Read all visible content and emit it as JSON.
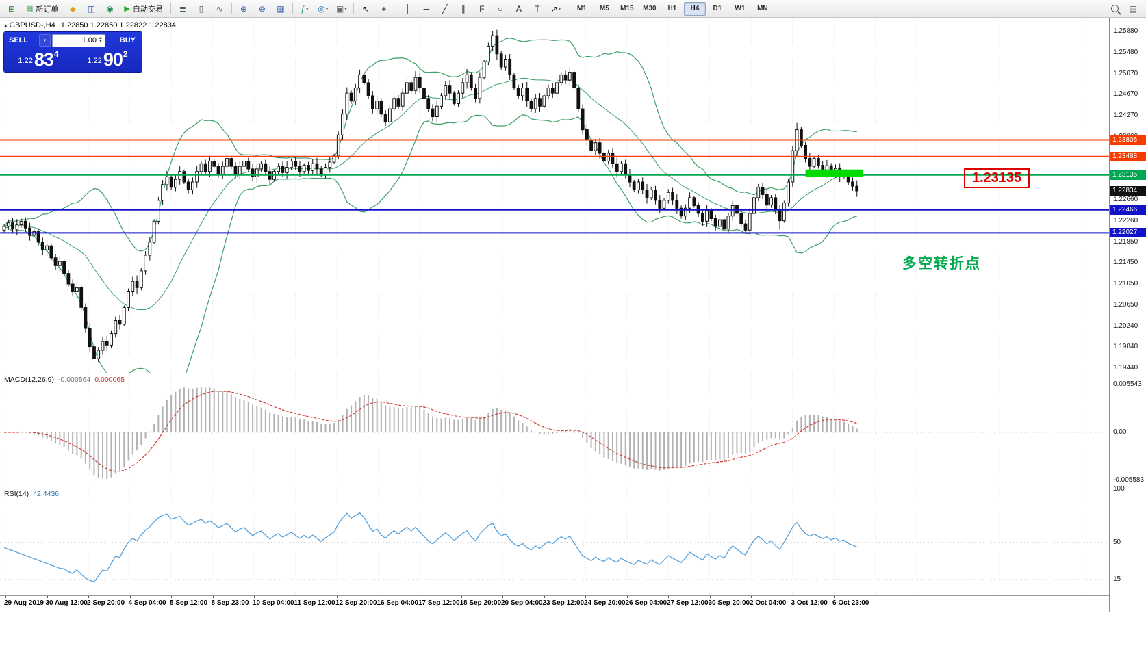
{
  "toolbar": {
    "items": [
      {
        "type": "icon",
        "name": "new-chart",
        "glyph": "⊞",
        "color": "#2f7d32"
      },
      {
        "type": "button",
        "name": "new-order",
        "label": "新订单",
        "icon": "▤",
        "icon_color": "#2f9e44"
      },
      {
        "type": "icon",
        "name": "favorites",
        "glyph": "◆",
        "color": "#dfa41c"
      },
      {
        "type": "icon",
        "name": "market-watch",
        "glyph": "◫",
        "color": "#2458b8"
      },
      {
        "type": "icon",
        "name": "strategy-tester",
        "glyph": "◉",
        "color": "#2a8f5a"
      },
      {
        "type": "button",
        "name": "autotrading",
        "label": "自动交易",
        "icon": "▶",
        "icon_color": "#24a62c"
      },
      {
        "type": "sep"
      },
      {
        "type": "icon",
        "name": "bar-chart-mode",
        "glyph": "≣",
        "color": "#3f5f3f"
      },
      {
        "type": "icon",
        "name": "candlestick-mode",
        "glyph": "▯",
        "color": "#3f5f3f"
      },
      {
        "type": "icon",
        "name": "line-chart-mode",
        "glyph": "∿",
        "color": "#3f5f3f"
      },
      {
        "type": "sep"
      },
      {
        "type": "icon",
        "name": "zoom-in",
        "glyph": "⊕",
        "color": "#3558a8"
      },
      {
        "type": "icon",
        "name": "zoom-out",
        "glyph": "⊖",
        "color": "#3558a8"
      },
      {
        "type": "icon",
        "name": "tile-windows",
        "glyph": "▦",
        "color": "#3558a8"
      },
      {
        "type": "sep"
      },
      {
        "type": "icon",
        "name": "indicators",
        "glyph": "ƒ",
        "color": "#1f8a4c",
        "dd": true
      },
      {
        "type": "icon",
        "name": "navigator",
        "glyph": "◎",
        "color": "#1f6ab0",
        "dd": true
      },
      {
        "type": "icon",
        "name": "templates",
        "glyph": "▣",
        "color": "#6b6b6b",
        "dd": true
      },
      {
        "type": "sep"
      },
      {
        "type": "icon",
        "name": "cursor",
        "glyph": "↖",
        "color": "#222222"
      },
      {
        "type": "icon",
        "name": "crosshair",
        "glyph": "+",
        "color": "#222222"
      },
      {
        "type": "sep"
      },
      {
        "type": "icon",
        "name": "vertical-line-tool",
        "glyph": "│",
        "color": "#222222"
      },
      {
        "type": "icon",
        "name": "horizontal-line-tool",
        "glyph": "─",
        "color": "#222222"
      },
      {
        "type": "icon",
        "name": "trendline-tool",
        "glyph": "╱",
        "color": "#222222"
      },
      {
        "type": "icon",
        "name": "channel-tool",
        "glyph": "∥",
        "color": "#222222"
      },
      {
        "type": "icon",
        "name": "fibonacci-tool",
        "glyph": "F",
        "color": "#222222"
      },
      {
        "type": "icon",
        "name": "shapes-tool",
        "glyph": "○",
        "color": "#222222"
      },
      {
        "type": "icon",
        "name": "text-tool",
        "glyph": "A",
        "color": "#222222"
      },
      {
        "type": "icon",
        "name": "label-tool",
        "glyph": "T",
        "color": "#222222"
      },
      {
        "type": "icon",
        "name": "arrows-tool",
        "glyph": "↗",
        "color": "#222222",
        "dd": true
      }
    ],
    "timeframes": [
      {
        "label": "M1"
      },
      {
        "label": "M5"
      },
      {
        "label": "M15"
      },
      {
        "label": "M30"
      },
      {
        "label": "H1"
      },
      {
        "label": "H4",
        "active": true
      },
      {
        "label": "D1"
      },
      {
        "label": "W1"
      },
      {
        "label": "MN"
      }
    ],
    "right_items": [
      {
        "type": "icon",
        "name": "search",
        "glyph": "MAG"
      },
      {
        "type": "icon",
        "name": "data-window",
        "glyph": "▤",
        "color": "#555555"
      }
    ]
  },
  "chart": {
    "title": "GBPUSD-,H4",
    "ohlc": "1.22850 1.22850 1.22822 1.22834"
  },
  "trade_panel": {
    "sell_label": "SELL",
    "buy_label": "BUY",
    "volume": "1.00",
    "sell_price_prefix": "1.22",
    "sell_price_big": "83",
    "sell_price_pip": "4",
    "buy_price_prefix": "1.22",
    "buy_price_big": "90",
    "buy_price_pip": "2"
  },
  "levels": [
    {
      "label": "1.23805",
      "price": 1.23805,
      "color": "#f63c00",
      "width": 2
    },
    {
      "label": "1.23488",
      "price": 1.23488,
      "color": "#f63c00",
      "width": 2
    },
    {
      "label": "1.23135",
      "price": 1.23135,
      "color": "#00a651",
      "width": 2
    },
    {
      "label": "1.22466",
      "price": 1.22466,
      "color": "#1212c8",
      "width": 2
    },
    {
      "label": "1.22027",
      "price": 1.22027,
      "color": "#1212c8",
      "width": 2
    },
    {
      "label": "1.22834",
      "price": 1.22834,
      "color": "#111111",
      "tag_only": true
    }
  ],
  "drawings": {
    "rectangle": {
      "start_index": 187,
      "end_index": 200.5,
      "price_top": 1.2324,
      "price_bottom": 1.231,
      "color": "#00dc00"
    }
  },
  "annotations": {
    "price_callout": "1.23135",
    "turning_point_label": "多空转折点"
  },
  "axis": {
    "price_ticks": [
      "1.25880",
      "1.25480",
      "1.25070",
      "1.24670",
      "1.24270",
      "1.23860",
      "1.23460",
      "1.23060",
      "1.22660",
      "1.22260",
      "1.21850",
      "1.21450",
      "1.21050",
      "1.20650",
      "1.20240",
      "1.19840",
      "1.19440"
    ],
    "time_ticks": [
      "29 Aug 2019",
      "30 Aug 12:00",
      "2 Sep 20:00",
      "4 Sep 04:00",
      "5 Sep 12:00",
      "8 Sep 23:00",
      "10 Sep 04:00",
      "11 Sep 12:00",
      "12 Sep 20:00",
      "16 Sep 04:00",
      "17 Sep 12:00",
      "18 Sep 20:00",
      "20 Sep 04:00",
      "23 Sep 12:00",
      "24 Sep 20:00",
      "26 Sep 04:00",
      "27 Sep 12:00",
      "30 Sep 20:00",
      "2 Oct 04:00",
      "3 Oct 12:00",
      "6 Oct 23:00"
    ]
  },
  "macd_panel": {
    "title": "MACD(12,26,9)",
    "value1": "-0.000564",
    "value2": "0.000065",
    "axis_labels": [
      "0.005543",
      "0.00",
      "-0.005583"
    ]
  },
  "rsi_panel": {
    "title": "RSI(14)",
    "value": "42.4436",
    "axis_labels": [
      "100",
      "50",
      "15"
    ],
    "levels": [
      50,
      15
    ]
  },
  "chart_data": {
    "type": "candlestick",
    "symbol": "GBPUSD",
    "timeframe": "H4",
    "ylim": [
      1.1944,
      1.2588
    ],
    "first_open": 1.2208,
    "closes": [
      1.2215,
      1.2222,
      1.221,
      1.2218,
      1.2225,
      1.2212,
      1.2198,
      1.2205,
      1.2185,
      1.217,
      1.2178,
      1.2155,
      1.214,
      1.2148,
      1.2125,
      1.2105,
      1.209,
      1.2098,
      1.206,
      1.202,
      1.1985,
      1.1962,
      1.1978,
      1.1995,
      1.1988,
      1.201,
      1.2035,
      1.2028,
      1.206,
      1.209,
      1.211,
      1.2098,
      1.213,
      1.216,
      1.2185,
      1.2225,
      1.2265,
      1.2295,
      1.231,
      1.229,
      1.2305,
      1.232,
      1.23,
      1.2285,
      1.23,
      1.232,
      1.2335,
      1.232,
      1.234,
      1.233,
      1.2315,
      1.233,
      1.2345,
      1.233,
      1.2315,
      1.233,
      1.234,
      1.2325,
      1.231,
      1.2325,
      1.2335,
      1.232,
      1.2305,
      1.232,
      1.233,
      1.2318,
      1.2328,
      1.234,
      1.233,
      1.232,
      1.2332,
      1.2322,
      1.2335,
      1.2325,
      1.2315,
      1.2328,
      1.2338,
      1.235,
      1.239,
      1.243,
      1.247,
      1.2455,
      1.248,
      1.2505,
      1.249,
      1.2465,
      1.244,
      1.2455,
      1.243,
      1.2415,
      1.244,
      1.246,
      1.2445,
      1.247,
      1.249,
      1.2475,
      1.25,
      1.248,
      1.246,
      1.244,
      1.2425,
      1.2445,
      1.2465,
      1.2485,
      1.247,
      1.245,
      1.247,
      1.249,
      1.2505,
      1.248,
      1.246,
      1.25,
      1.253,
      1.256,
      1.258,
      1.2545,
      1.252,
      1.2535,
      1.2505,
      1.248,
      1.2465,
      1.248,
      1.2455,
      1.244,
      1.246,
      1.2445,
      1.2465,
      1.248,
      1.247,
      1.249,
      1.2505,
      1.2495,
      1.251,
      1.248,
      1.244,
      1.24,
      1.238,
      1.236,
      1.2375,
      1.2355,
      1.234,
      1.2355,
      1.2335,
      1.232,
      1.2335,
      1.2315,
      1.23,
      1.2285,
      1.23,
      1.2285,
      1.227,
      1.2285,
      1.2265,
      1.225,
      1.2265,
      1.228,
      1.2265,
      1.225,
      1.2235,
      1.225,
      1.227,
      1.2255,
      1.224,
      1.2225,
      1.2245,
      1.223,
      1.2215,
      1.2228,
      1.221,
      1.2235,
      1.2255,
      1.224,
      1.222,
      1.2208,
      1.224,
      1.227,
      1.229,
      1.2276,
      1.2256,
      1.227,
      1.2246,
      1.2226,
      1.226,
      1.23,
      1.236,
      1.24,
      1.237,
      1.2345,
      1.233,
      1.2345,
      1.2332,
      1.232,
      1.2331,
      1.2316,
      1.2326,
      1.231,
      1.2316,
      1.23,
      1.2292,
      1.2283
    ],
    "spikes": [
      {
        "i": 21,
        "low": 1.1958
      },
      {
        "i": 96,
        "high": 1.2512
      },
      {
        "i": 114,
        "high": 1.2588
      },
      {
        "i": 168,
        "low": 1.2206
      },
      {
        "i": 173,
        "low": 1.2204
      },
      {
        "i": 181,
        "low": 1.2209
      },
      {
        "i": 185,
        "high": 1.2413
      }
    ],
    "indicators": [
      {
        "name": "Bollinger Bands",
        "period": 20,
        "deviation": 2,
        "color": "#3aa065"
      },
      {
        "name": "MACD",
        "params": [
          12,
          26,
          9
        ],
        "histogram_color": "#b2b2b2",
        "signal_color": "#d03a30"
      },
      {
        "name": "RSI",
        "params": [
          14
        ],
        "color": "#54a0dc"
      }
    ]
  }
}
